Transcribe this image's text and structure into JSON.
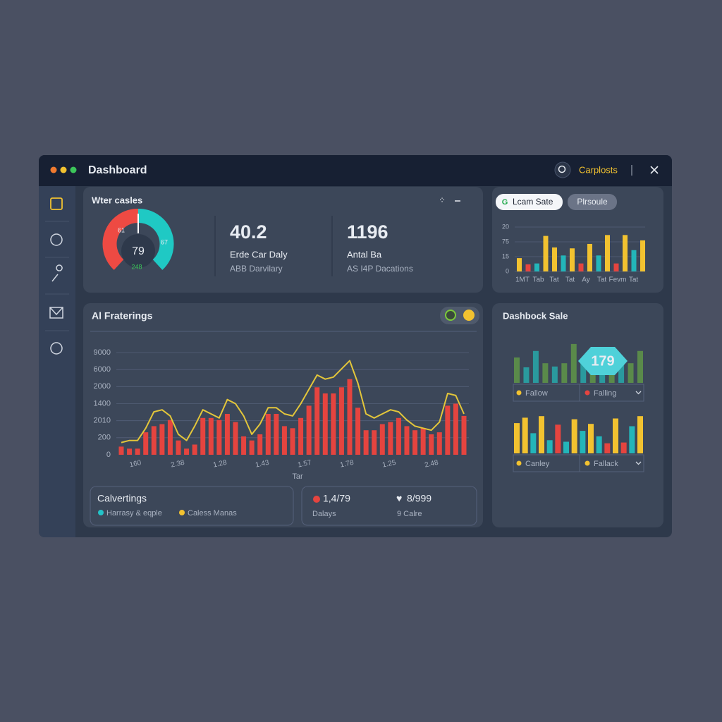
{
  "window": {
    "title": "Dashboard",
    "account": "Carplosts"
  },
  "summary": {
    "title": "Wter casles",
    "gauge": {
      "center": 79,
      "left": 61,
      "right": 67,
      "bottom": 248
    },
    "stats": [
      {
        "value": 40.2,
        "label": "Erde Car Daly",
        "caption": "ABB Darvilary"
      },
      {
        "value": 1196,
        "label": "Antal Ba",
        "caption": "AS I4P Dacations"
      }
    ]
  },
  "mini_chart": {
    "type": "bar",
    "tabs": [
      "Lcam Sate",
      "Plrsoule"
    ],
    "y_labels": [
      "20",
      "75",
      "15",
      "0"
    ],
    "x_labels": [
      "1MT",
      "Tab",
      "Tat",
      "Tat",
      "Ay",
      "Tat",
      "Fevm",
      "Tat"
    ],
    "ylim": [
      0,
      100
    ],
    "bars": [
      {
        "value": 30,
        "color": "#f2c230"
      },
      {
        "value": 16,
        "color": "#e5443f"
      },
      {
        "value": 18,
        "color": "#23b5b9"
      },
      {
        "value": 80,
        "color": "#f2c230"
      },
      {
        "value": 54,
        "color": "#f2c230"
      },
      {
        "value": 36,
        "color": "#23b5b9"
      },
      {
        "value": 52,
        "color": "#f2c230"
      },
      {
        "value": 18,
        "color": "#e5443f"
      },
      {
        "value": 62,
        "color": "#f2c230"
      },
      {
        "value": 36,
        "color": "#23b5b9"
      },
      {
        "value": 82,
        "color": "#f2c230"
      },
      {
        "value": 18,
        "color": "#e5443f"
      },
      {
        "value": 82,
        "color": "#f2c230"
      },
      {
        "value": 48,
        "color": "#23b5b9"
      },
      {
        "value": 70,
        "color": "#f2c230"
      }
    ]
  },
  "main_chart": {
    "type": "bar",
    "title": "Al Fraterings",
    "y_labels": [
      "9000",
      "6000",
      "2000",
      "1400",
      "2010",
      "200",
      "0"
    ],
    "x_labels": [
      "160",
      "2.38",
      "1.28",
      "1.43",
      "1.57",
      "1.78",
      "1.25",
      "2.48"
    ],
    "x_axis_label": "Tar",
    "ylim": [
      0,
      100
    ],
    "color": "#e5443f",
    "values": [
      8,
      6,
      6,
      22,
      28,
      30,
      34,
      14,
      6,
      10,
      36,
      36,
      34,
      40,
      32,
      18,
      14,
      20,
      40,
      40,
      28,
      26,
      36,
      48,
      66,
      60,
      60,
      66,
      74,
      46,
      24,
      24,
      30,
      32,
      36,
      28,
      24,
      26,
      20,
      22,
      48,
      50,
      38
    ],
    "line": {
      "color": "#e3c63a",
      "values": [
        12,
        14,
        14,
        26,
        42,
        44,
        38,
        20,
        14,
        28,
        44,
        40,
        36,
        54,
        50,
        38,
        20,
        30,
        46,
        46,
        40,
        38,
        50,
        64,
        78,
        74,
        76,
        84,
        92,
        70,
        40,
        36,
        40,
        44,
        42,
        34,
        28,
        26,
        24,
        32,
        60,
        58,
        40
      ]
    }
  },
  "legend_card": {
    "title": "Calvertings",
    "items": [
      {
        "label": "Harrasy & eqple",
        "color": "#23c3c8"
      },
      {
        "label": "Caless Manas",
        "color": "#f2c230"
      }
    ]
  },
  "stats_card": {
    "items": [
      {
        "value": "1,4/79",
        "label": "Dalays"
      },
      {
        "value": "8/999",
        "label": "9 Calre"
      }
    ]
  },
  "sales": {
    "title": "Dashbock Sale",
    "badge": 179,
    "groups": [
      {
        "bars": [
          {
            "value": 62,
            "color": "#5a8a4a"
          },
          {
            "value": 38,
            "color": "#2a9a9e"
          },
          {
            "value": 78,
            "color": "#2a9a9e"
          },
          {
            "value": 48,
            "color": "#5a8a4a"
          },
          {
            "value": 40,
            "color": "#2a9a9e"
          },
          {
            "value": 48,
            "color": "#5a8a4a"
          },
          {
            "value": 95,
            "color": "#5a8a4a"
          },
          {
            "value": 48,
            "color": "#2a9a9e"
          },
          {
            "value": 78,
            "color": "#5a8a4a"
          },
          {
            "value": 62,
            "color": "#2a9a9e"
          },
          {
            "value": 78,
            "color": "#5a8a4a"
          },
          {
            "value": 52,
            "color": "#2a9a9e"
          },
          {
            "value": 48,
            "color": "#5a8a4a"
          },
          {
            "value": 78,
            "color": "#5a8a4a"
          }
        ],
        "filters": [
          {
            "label": "Fallow",
            "color": "#f2c230"
          },
          {
            "label": "Falling",
            "color": "#e5443f"
          }
        ]
      },
      {
        "bars": [
          {
            "value": 78,
            "color": "#f2c230"
          },
          {
            "value": 92,
            "color": "#f2c230"
          },
          {
            "value": 52,
            "color": "#23b5b9"
          },
          {
            "value": 96,
            "color": "#f2c230"
          },
          {
            "value": 34,
            "color": "#23b5b9"
          },
          {
            "value": 74,
            "color": "#e5443f"
          },
          {
            "value": 30,
            "color": "#23b5b9"
          },
          {
            "value": 88,
            "color": "#f2c230"
          },
          {
            "value": 58,
            "color": "#23b5b9"
          },
          {
            "value": 76,
            "color": "#f2c230"
          },
          {
            "value": 44,
            "color": "#23b5b9"
          },
          {
            "value": 26,
            "color": "#e5443f"
          },
          {
            "value": 90,
            "color": "#f2c230"
          },
          {
            "value": 28,
            "color": "#e5443f"
          },
          {
            "value": 70,
            "color": "#23b5b9"
          },
          {
            "value": 96,
            "color": "#f2c230"
          }
        ],
        "filters": [
          {
            "label": "Canley",
            "color": "#f2c230"
          },
          {
            "label": "Fallack",
            "color": "#f2c230"
          }
        ]
      }
    ]
  }
}
